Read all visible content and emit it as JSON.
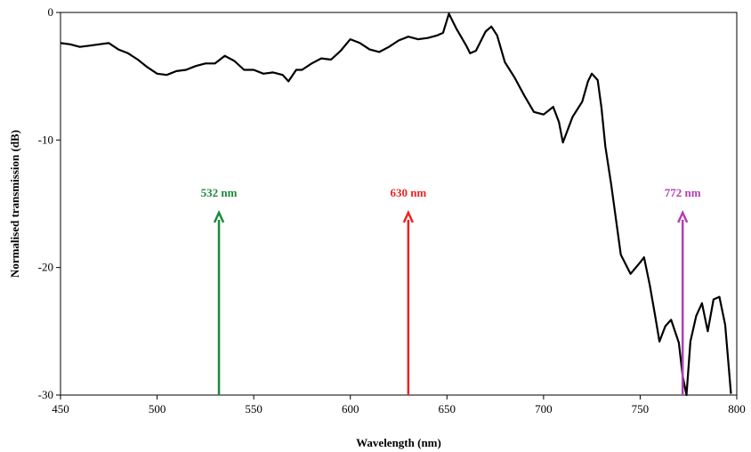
{
  "chart_data": {
    "type": "line",
    "xlabel": "Wavelength (nm)",
    "ylabel": "Normalised transmission (dB)",
    "xlim": [
      450,
      800
    ],
    "ylim": [
      -30,
      0
    ],
    "xticks": [
      450,
      500,
      550,
      600,
      650,
      700,
      750,
      800
    ],
    "yticks": [
      0,
      -10,
      -20,
      -30
    ],
    "xtick_labels": [
      "450",
      "500",
      "550",
      "600",
      "650",
      "700",
      "750",
      "800"
    ],
    "ytick_labels": [
      "0",
      "-10",
      "-20",
      "-30"
    ],
    "grid": false,
    "line_color": "#000000",
    "series": [
      {
        "x": [
          450,
          455,
          460,
          465,
          470,
          475,
          480,
          485,
          490,
          495,
          500,
          505,
          510,
          515,
          520,
          525,
          530,
          535,
          540,
          545,
          550,
          555,
          560,
          565,
          568,
          572,
          575,
          580,
          585,
          590,
          595,
          600,
          605,
          610,
          615,
          620,
          625,
          630,
          635,
          640,
          645,
          648,
          651,
          655,
          660,
          662,
          665,
          670,
          673,
          676,
          680,
          685,
          690,
          695,
          700,
          705,
          708,
          710,
          715,
          720,
          723,
          725,
          728,
          730,
          732,
          735,
          740,
          745,
          750,
          752,
          755,
          758,
          760,
          763,
          766,
          770,
          772,
          774,
          776,
          779,
          782,
          785,
          788,
          791,
          794,
          797
        ],
        "y": [
          -2.4,
          -2.5,
          -2.7,
          -2.6,
          -2.5,
          -2.4,
          -2.9,
          -3.2,
          -3.7,
          -4.3,
          -4.8,
          -4.9,
          -4.6,
          -4.5,
          -4.2,
          -4.0,
          -4.0,
          -3.4,
          -3.8,
          -4.5,
          -4.5,
          -4.8,
          -4.7,
          -4.9,
          -5.4,
          -4.5,
          -4.5,
          -4.0,
          -3.6,
          -3.7,
          -3.0,
          -2.1,
          -2.4,
          -2.9,
          -3.1,
          -2.7,
          -2.2,
          -1.9,
          -2.1,
          -2.0,
          -1.8,
          -1.6,
          -0.1,
          -1.3,
          -2.6,
          -3.2,
          -3.0,
          -1.5,
          -1.1,
          -1.8,
          -3.9,
          -5.1,
          -6.5,
          -7.8,
          -8.0,
          -7.4,
          -8.6,
          -10.2,
          -8.2,
          -7.0,
          -5.4,
          -4.8,
          -5.3,
          -7.5,
          -10.5,
          -13.5,
          -19.0,
          -20.5,
          -19.6,
          -19.2,
          -21.4,
          -24.0,
          -25.8,
          -24.6,
          -24.1,
          -25.9,
          -28.5,
          -30.0,
          -25.8,
          -23.8,
          -22.8,
          -25.0,
          -22.5,
          -22.3,
          -24.5,
          -29.9
        ]
      }
    ],
    "arrows": [
      {
        "label": "532 nm",
        "wavelength": 532,
        "top_db": -15.7,
        "color": "#1a8a3a"
      },
      {
        "label": "630 nm",
        "wavelength": 630,
        "top_db": -15.7,
        "color": "#ee2222"
      },
      {
        "label": "772 nm",
        "wavelength": 772,
        "top_db": -15.7,
        "color": "#b040b0"
      }
    ]
  }
}
